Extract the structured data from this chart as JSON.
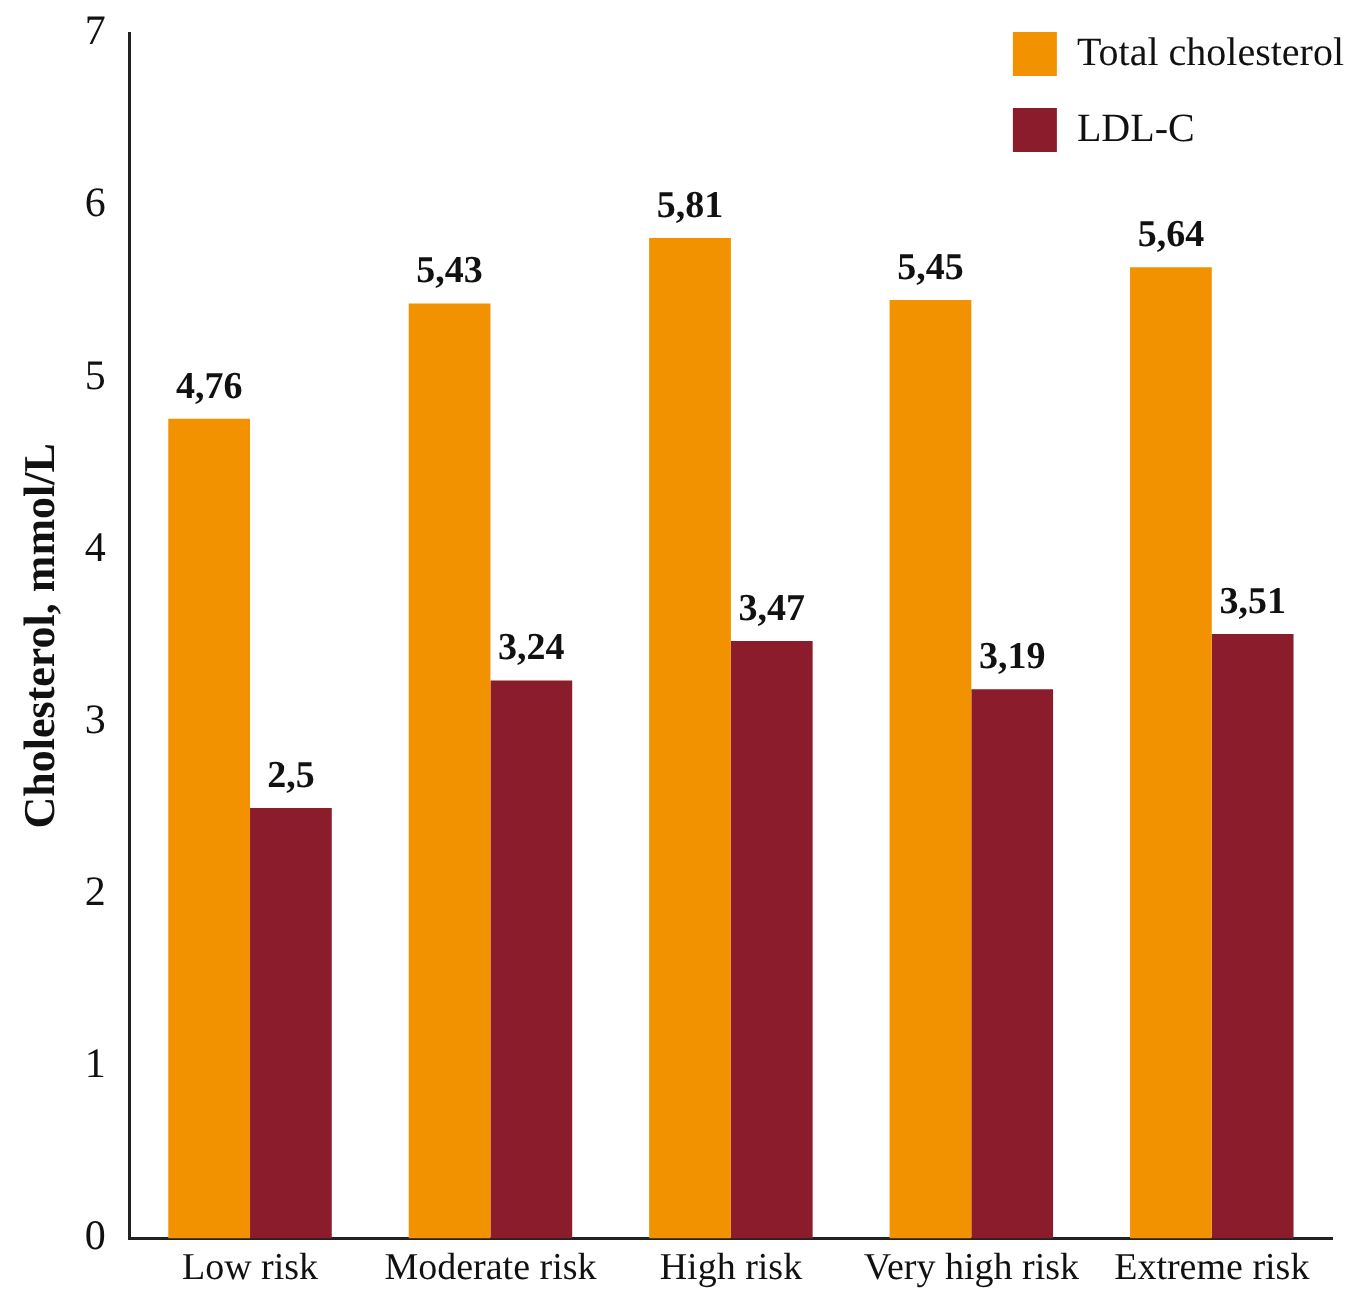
{
  "chart_data": {
    "type": "bar",
    "ylabel": "Cholesterol, mmol/L",
    "categories": [
      "Low risk",
      "Moderate risk",
      "High risk",
      "Very high risk",
      "Extreme risk"
    ],
    "series": [
      {
        "name": "Total cholesterol",
        "color": "#f39200",
        "values": [
          4.76,
          5.43,
          5.81,
          5.45,
          5.64
        ],
        "value_labels": [
          "4,76",
          "5,43",
          "5,81",
          "5,45",
          "5,64"
        ]
      },
      {
        "name": "LDL-C",
        "color": "#8b1c2b",
        "values": [
          2.5,
          3.24,
          3.47,
          3.19,
          3.51
        ],
        "value_labels": [
          "2,5",
          "3,24",
          "3,47",
          "3,19",
          "3,51"
        ]
      }
    ],
    "ylim": [
      0,
      7
    ],
    "yticks": [
      0,
      1,
      2,
      3,
      4,
      5,
      6,
      7
    ],
    "grid": false,
    "legend": "top right"
  }
}
